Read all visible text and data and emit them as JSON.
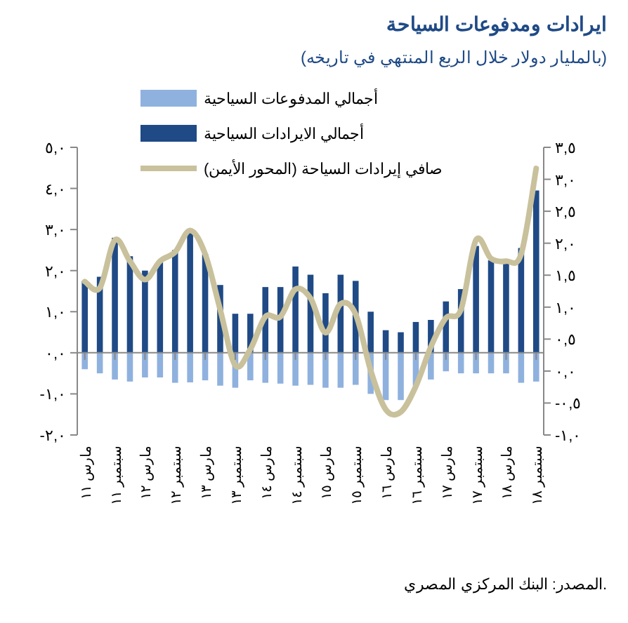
{
  "chart_data": {
    "type": "bar",
    "title": "ايرادات ومدفوعات السياحة",
    "subtitle": "(بالمليار دولار خلال الربع المنتهي في تاريخه)",
    "categories": [
      "مارس ١١",
      null,
      "سبتمبر ١١",
      null,
      "مارس ١٢",
      null,
      "سبتمبر ١٢",
      null,
      "مارس ١٣",
      null,
      "سبتمبر ١٣",
      null,
      "مارس ١٤",
      null,
      "سبتمبر ١٤",
      null,
      "مارس ١٥",
      null,
      "سبتمبر ١٥",
      null,
      "مارس ١٦",
      null,
      "سبتمبر ١٦",
      null,
      "مارس ١٧",
      null,
      "سبتمبر ١٧",
      null,
      "مارس ١٨",
      null,
      "سبتمبر ١٨"
    ],
    "stacked": true,
    "series": [
      {
        "name": "أجمالي المدفوعات السياحية",
        "color": "#8fb1de",
        "values": [
          -0.4,
          -0.5,
          -0.65,
          -0.7,
          -0.6,
          -0.6,
          -0.73,
          -0.72,
          -0.67,
          -0.8,
          -0.85,
          -0.67,
          -0.73,
          -0.75,
          -0.8,
          -0.78,
          -0.85,
          -0.85,
          -0.78,
          -1.0,
          -1.15,
          -1.15,
          -0.8,
          -0.65,
          -0.45,
          -0.5,
          -0.5,
          -0.5,
          -0.5,
          -0.73,
          -0.7
        ]
      },
      {
        "name": "أجمالي الايرادات السياحية",
        "color": "#1f4a86",
        "values": [
          1.75,
          1.85,
          2.8,
          2.35,
          2.0,
          2.2,
          2.5,
          2.95,
          2.4,
          1.65,
          0.95,
          0.95,
          1.6,
          1.6,
          2.1,
          1.9,
          1.45,
          1.9,
          1.75,
          1.0,
          0.55,
          0.5,
          0.75,
          0.8,
          1.25,
          1.55,
          2.6,
          2.25,
          2.2,
          2.55,
          3.95
        ]
      },
      {
        "name": "صافي إيرادات السياحة (المحور الأيمن)",
        "type": "line",
        "axis": "y2",
        "color": "#c9c19c",
        "values": [
          1.4,
          1.3,
          2.05,
          1.72,
          1.43,
          1.72,
          1.86,
          2.2,
          1.83,
          0.96,
          0.09,
          0.34,
          0.85,
          0.85,
          1.28,
          1.14,
          0.6,
          1.05,
          0.89,
          0.01,
          -0.6,
          -0.64,
          -0.24,
          0.38,
          0.83,
          0.96,
          2.05,
          1.76,
          1.72,
          1.83,
          3.17
        ]
      }
    ],
    "ylim": [
      -2,
      5
    ],
    "yticks": [
      {
        "value": -2,
        "label": "-٢,٠"
      },
      {
        "value": -1,
        "label": "-١,٠"
      },
      {
        "value": 0,
        "label": "٠,٠"
      },
      {
        "value": 1,
        "label": "١,٠"
      },
      {
        "value": 2,
        "label": "٢,٠"
      },
      {
        "value": 3,
        "label": "٣,٠"
      },
      {
        "value": 4,
        "label": "٤,٠"
      },
      {
        "value": 5,
        "label": "٥,٠"
      }
    ],
    "y2lim": [
      -1,
      3.5
    ],
    "y2ticks": [
      {
        "value": -1,
        "label": "-١,٠"
      },
      {
        "value": -0.5,
        "label": "-٠,٥"
      },
      {
        "value": 0,
        "label": "٠,٠"
      },
      {
        "value": 0.5,
        "label": "٠,٥"
      },
      {
        "value": 1,
        "label": "١,٠"
      },
      {
        "value": 1.5,
        "label": "١,٥"
      },
      {
        "value": 2,
        "label": "٢,٠"
      },
      {
        "value": 2.5,
        "label": "٢,٥"
      },
      {
        "value": 3,
        "label": "٣,٠"
      },
      {
        "value": 3.5,
        "label": "٣,٥"
      }
    ],
    "legend": "top",
    "annotations": [
      "المصدر: البنك المركزي المصري."
    ]
  }
}
